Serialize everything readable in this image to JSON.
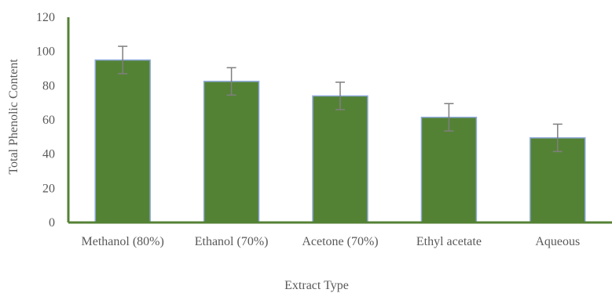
{
  "chart_data": {
    "type": "bar",
    "title": "",
    "xlabel": "Extract Type",
    "ylabel": "Total  Phenolic Content",
    "categories": [
      "Methanol (80%)",
      "Ethanol (70%)",
      "Acetone (70%)",
      "Ethyl acetate",
      "Aqueous"
    ],
    "series": [
      {
        "values": [
          95,
          82.5,
          74,
          61.5,
          49.5
        ],
        "error": [
          8,
          8,
          8,
          8,
          8
        ]
      }
    ],
    "ylim": [
      0,
      120
    ],
    "yticks": [
      "0",
      "20",
      "40",
      "60",
      "80",
      "100",
      "120"
    ],
    "grid": false,
    "legend": "none",
    "colors": {
      "bar_fill": "#548235",
      "bar_edge": "#8FAADC",
      "axis": "#548235",
      "error_bar": "#7F7F7F",
      "text": "#595959"
    }
  }
}
